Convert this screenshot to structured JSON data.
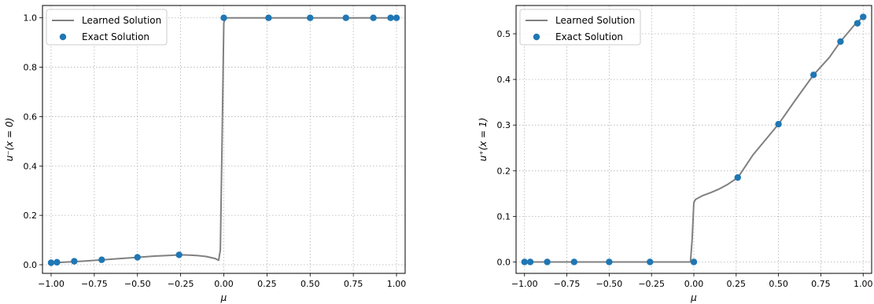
{
  "chart_data": [
    {
      "type": "line",
      "xlabel": "μ",
      "ylabel": "u⁻(x = 0)",
      "xlim": [
        -1.05,
        1.05
      ],
      "ylim": [
        -0.035,
        1.05
      ],
      "xticks": [
        -1.0,
        -0.75,
        -0.5,
        -0.25,
        0.0,
        0.25,
        0.5,
        0.75,
        1.0
      ],
      "xtick_labels": [
        "−1.00",
        "−0.75",
        "−0.50",
        "−0.25",
        "0.00",
        "0.25",
        "0.50",
        "0.75",
        "1.00"
      ],
      "yticks": [
        0.0,
        0.2,
        0.4,
        0.6,
        0.8,
        1.0
      ],
      "ytick_labels": [
        "0.0",
        "0.2",
        "0.4",
        "0.6",
        "0.8",
        "1.0"
      ],
      "grid": true,
      "legend_position": "top-left",
      "series": [
        {
          "name": "Learned Solution",
          "kind": "line",
          "color": "#808080",
          "x": [
            -1.0,
            -0.9,
            -0.8,
            -0.7,
            -0.6,
            -0.5,
            -0.4,
            -0.3,
            -0.25,
            -0.2,
            -0.15,
            -0.1,
            -0.05,
            -0.03,
            -0.02,
            -0.01,
            0.0,
            0.01,
            0.05,
            0.25,
            0.5,
            0.75,
            1.0
          ],
          "y": [
            0.008,
            0.011,
            0.015,
            0.02,
            0.025,
            0.03,
            0.035,
            0.038,
            0.04,
            0.039,
            0.037,
            0.033,
            0.025,
            0.018,
            0.06,
            0.5,
            0.98,
            1.0,
            1.0,
            1.0,
            1.0,
            1.0,
            1.0
          ]
        },
        {
          "name": "Exact Solution",
          "kind": "scatter",
          "color": "#1f77b4",
          "x": [
            -1.0,
            -0.966,
            -0.866,
            -0.707,
            -0.5,
            -0.259,
            0.0,
            0.259,
            0.5,
            0.707,
            0.866,
            0.966,
            1.0
          ],
          "y": [
            0.008,
            0.01,
            0.014,
            0.02,
            0.03,
            0.04,
            1.0,
            1.0,
            1.0,
            1.0,
            1.0,
            1.0,
            1.0
          ]
        }
      ]
    },
    {
      "type": "line",
      "xlabel": "μ",
      "ylabel": "u⁺(x = 1)",
      "xlim": [
        -1.05,
        1.05
      ],
      "ylim": [
        -0.025,
        0.562
      ],
      "xticks": [
        -1.0,
        -0.75,
        -0.5,
        -0.25,
        0.0,
        0.25,
        0.5,
        0.75,
        1.0
      ],
      "xtick_labels": [
        "−1.00",
        "−0.75",
        "−0.50",
        "−0.25",
        "0.00",
        "0.25",
        "0.50",
        "0.75",
        "1.00"
      ],
      "yticks": [
        0.0,
        0.1,
        0.2,
        0.3,
        0.4,
        0.5
      ],
      "ytick_labels": [
        "0.0",
        "0.1",
        "0.2",
        "0.3",
        "0.4",
        "0.5"
      ],
      "grid": true,
      "legend_position": "top-left",
      "series": [
        {
          "name": "Learned Solution",
          "kind": "line",
          "color": "#808080",
          "x": [
            -1.0,
            -0.75,
            -0.5,
            -0.25,
            -0.02,
            -0.01,
            0.0,
            0.01,
            0.05,
            0.1,
            0.15,
            0.2,
            0.26,
            0.35,
            0.5,
            0.6,
            0.707,
            0.8,
            0.866,
            0.95,
            1.0
          ],
          "y": [
            0.0,
            0.0,
            0.0,
            0.0,
            0.0,
            0.05,
            0.13,
            0.137,
            0.145,
            0.152,
            0.16,
            0.17,
            0.185,
            0.235,
            0.302,
            0.355,
            0.41,
            0.448,
            0.483,
            0.52,
            0.537
          ]
        },
        {
          "name": "Exact Solution",
          "kind": "scatter",
          "color": "#1f77b4",
          "x": [
            -1.0,
            -0.966,
            -0.866,
            -0.707,
            -0.5,
            -0.259,
            0.0,
            0.259,
            0.5,
            0.707,
            0.866,
            0.966,
            1.0
          ],
          "y": [
            0.0,
            0.0,
            0.0,
            0.0,
            0.0,
            0.0,
            0.0,
            0.185,
            0.302,
            0.41,
            0.483,
            0.523,
            0.537
          ]
        }
      ]
    }
  ]
}
